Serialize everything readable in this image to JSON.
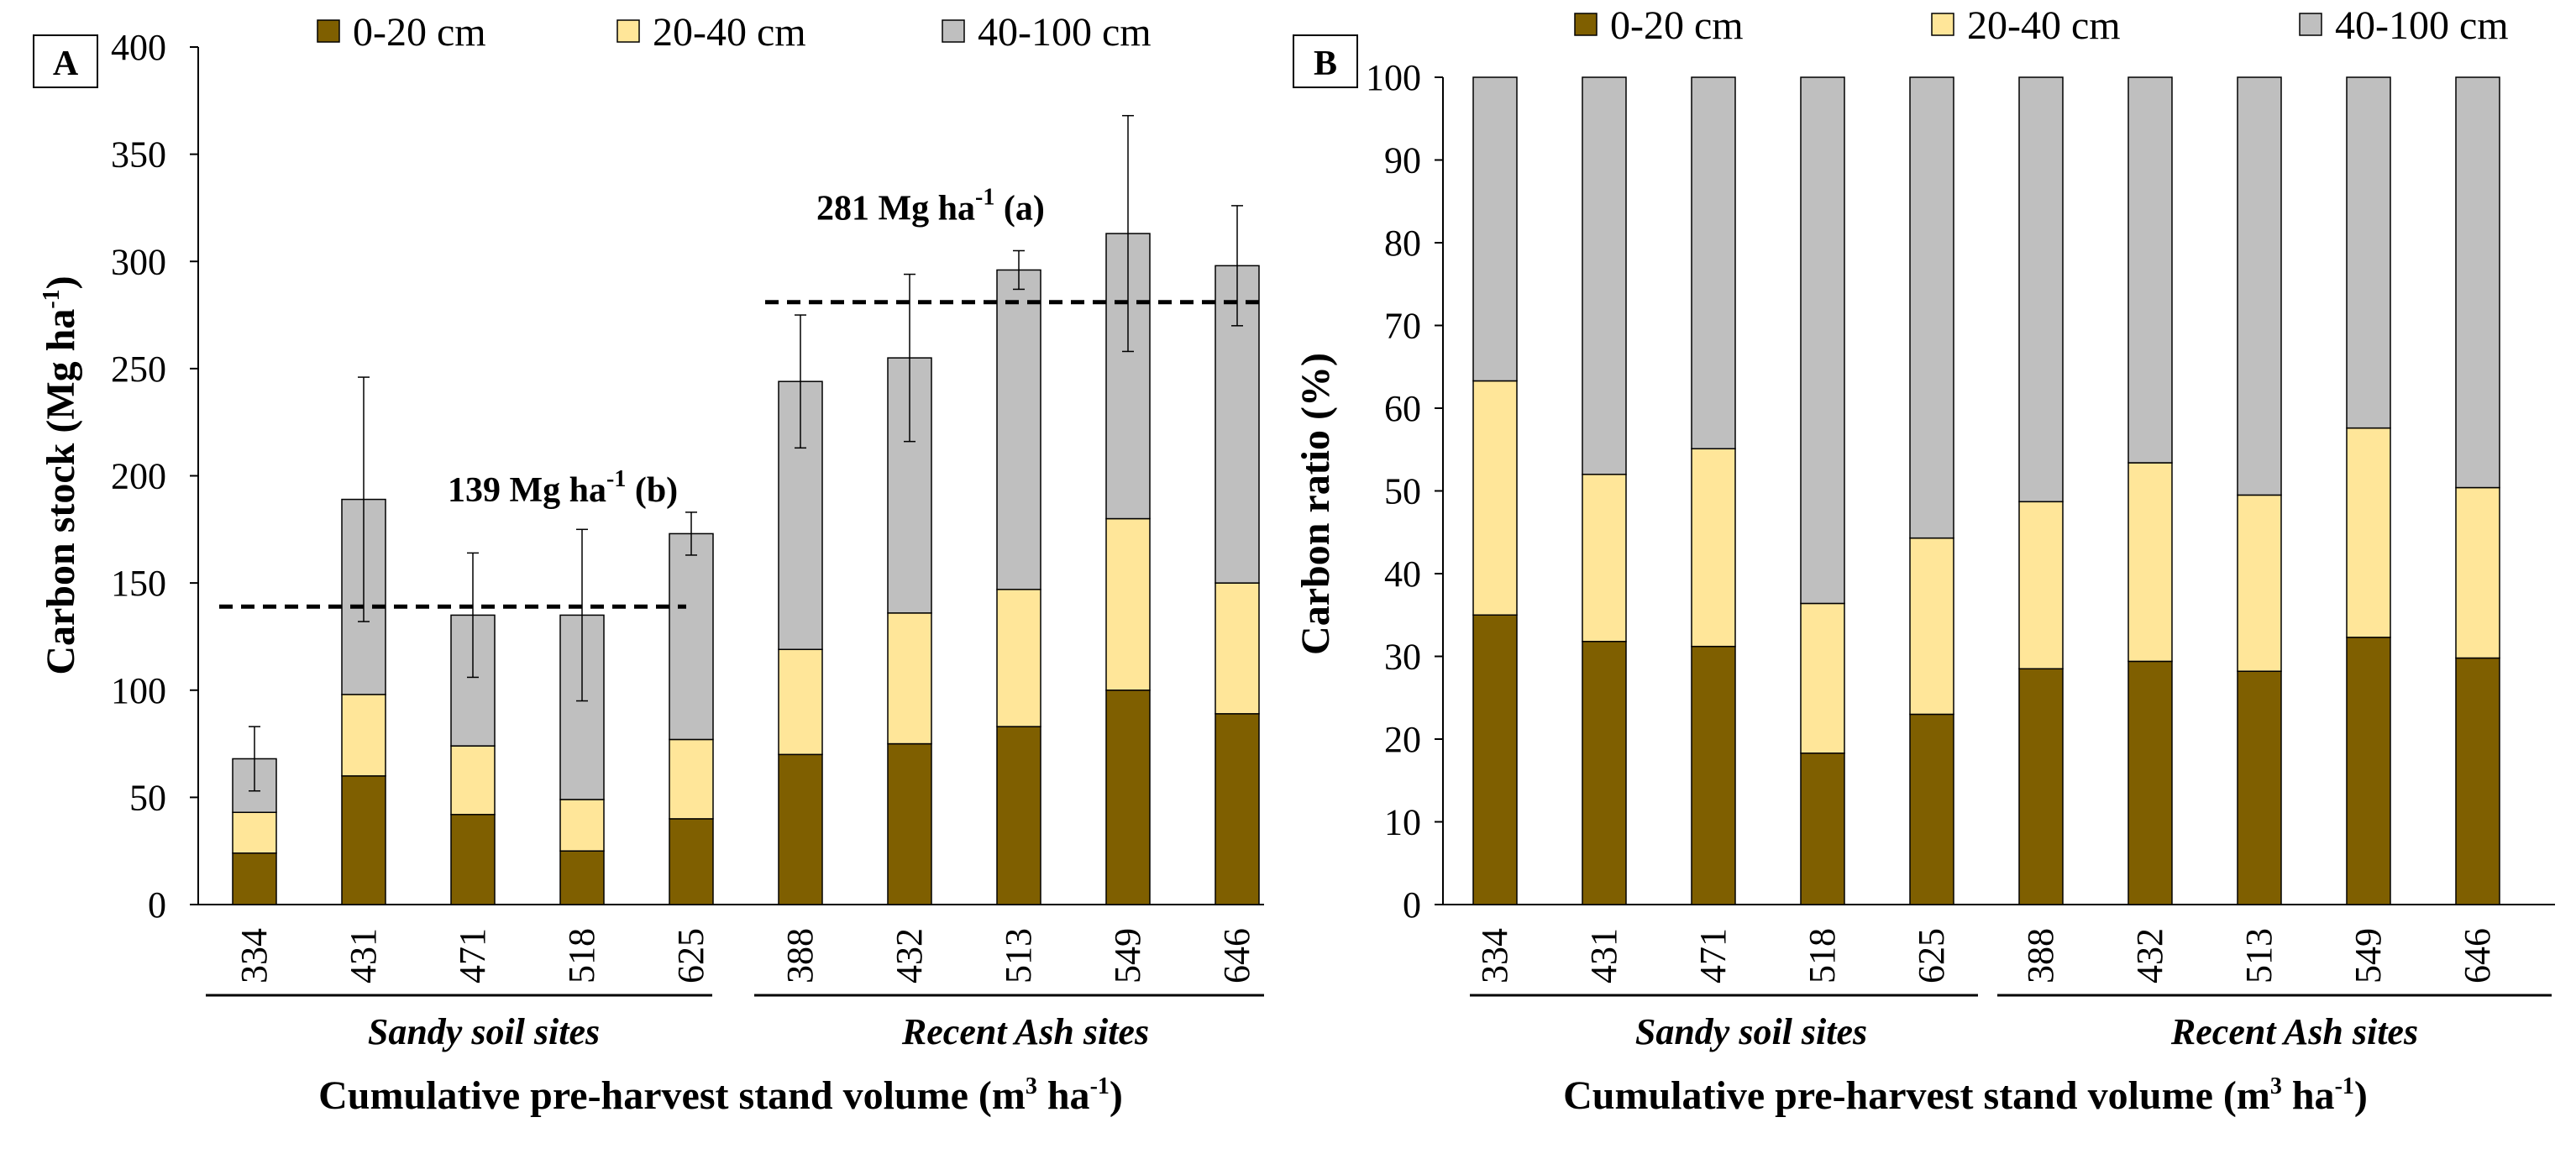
{
  "chart_data": [
    {
      "panel": "A",
      "type": "bar",
      "stacked": true,
      "categories": [
        "334",
        "431",
        "471",
        "518",
        "625",
        "388",
        "432",
        "513",
        "549",
        "646"
      ],
      "groups": [
        {
          "label": "Sandy soil sites",
          "categories": [
            "334",
            "431",
            "471",
            "518",
            "625"
          ]
        },
        {
          "label": "Recent Ash sites",
          "categories": [
            "388",
            "432",
            "513",
            "549",
            "646"
          ]
        }
      ],
      "series": [
        {
          "name": "0-20 cm",
          "color": "#7f5f00",
          "values": [
            24,
            60,
            42,
            25,
            40,
            70,
            75,
            83,
            100,
            89
          ]
        },
        {
          "name": "20-40 cm",
          "color": "#ffe699",
          "values": [
            19,
            38,
            32,
            24,
            37,
            49,
            61,
            64,
            80,
            61
          ]
        },
        {
          "name": "40-100 cm",
          "color": "#bfbfbf",
          "values": [
            25,
            91,
            61,
            86,
            96,
            125,
            119,
            149,
            133,
            148
          ]
        }
      ],
      "error_bars": [
        15,
        57,
        29,
        40,
        10,
        31,
        39,
        9,
        55,
        28
      ],
      "reference_lines": [
        {
          "group": "Sandy soil sites",
          "value": 139,
          "label": "139 Mg ha",
          "sup": "-1",
          "letter": "(b)"
        },
        {
          "group": "Recent Ash sites",
          "value": 281,
          "label": "281 Mg ha",
          "sup": "-1",
          "letter": "(a)"
        }
      ],
      "ylabel": "Carbon stock (Mg ha",
      "ylabel_sup": "-1",
      "ylabel_close": ")",
      "xlabel": "Cumulative pre-harvest stand volume (m",
      "xlabel_sup1": "3",
      "xlabel_mid": " ha",
      "xlabel_sup2": "-1",
      "xlabel_close": ")",
      "ylim": [
        0,
        400
      ],
      "yticks": [
        0,
        50,
        100,
        150,
        200,
        250,
        300,
        350,
        400
      ],
      "legend": "top"
    },
    {
      "panel": "B",
      "type": "bar",
      "stacked": true,
      "categories": [
        "334",
        "431",
        "471",
        "518",
        "625",
        "388",
        "432",
        "513",
        "549",
        "646"
      ],
      "groups": [
        {
          "label": "Sandy soil sites",
          "categories": [
            "334",
            "431",
            "471",
            "518",
            "625"
          ]
        },
        {
          "label": "Recent Ash sites",
          "categories": [
            "388",
            "432",
            "513",
            "549",
            "646"
          ]
        }
      ],
      "series": [
        {
          "name": "0-20 cm",
          "color": "#7f5f00",
          "values": [
            35,
            31.8,
            31.2,
            18.3,
            23,
            28.5,
            29.4,
            28.2,
            32.3,
            29.8
          ]
        },
        {
          "name": "20-40 cm",
          "color": "#ffe699",
          "values": [
            28.3,
            20.2,
            23.9,
            18.1,
            21.3,
            20.2,
            24,
            21.3,
            25.3,
            20.6
          ]
        },
        {
          "name": "40-100 cm",
          "color": "#bfbfbf",
          "values": [
            36.7,
            48,
            44.9,
            63.6,
            55.7,
            51.3,
            46.6,
            50.5,
            42.4,
            49.6
          ]
        }
      ],
      "ylabel": "Carbon ratio (%)",
      "xlabel": "Cumulative pre-harvest stand volume (m",
      "xlabel_sup1": "3",
      "xlabel_mid": " ha",
      "xlabel_sup2": "-1",
      "xlabel_close": ")",
      "ylim": [
        0,
        100
      ],
      "yticks": [
        0,
        10,
        20,
        30,
        40,
        50,
        60,
        70,
        80,
        90,
        100
      ],
      "legend": "top"
    }
  ]
}
